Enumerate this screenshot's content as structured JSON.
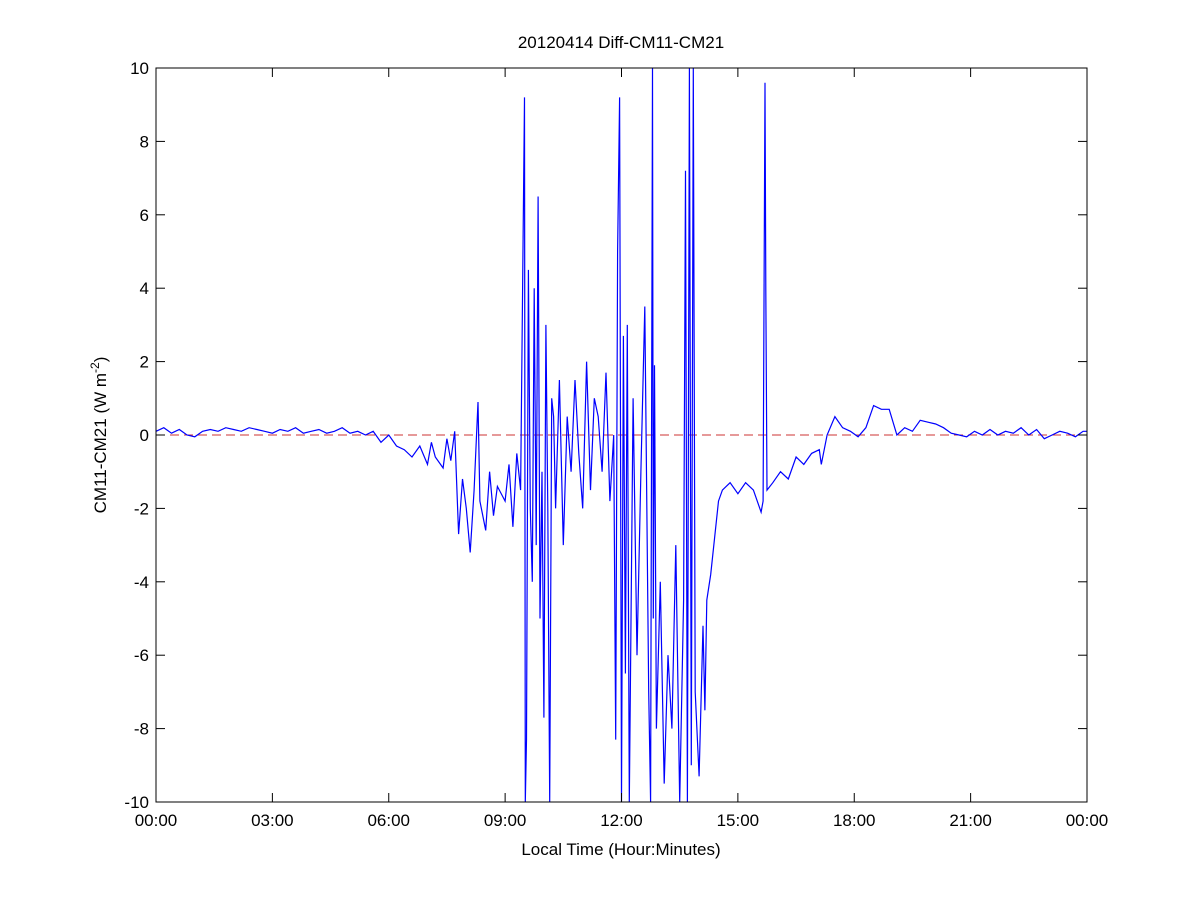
{
  "chart_data": {
    "type": "line",
    "title": "20120414 Diff-CM11-CM21",
    "xlabel": "Local Time (Hour:Minutes)",
    "ylabel": {
      "main": "CM11-CM21 (W m",
      "sup": "-2",
      "close": ")"
    },
    "xlim": [
      0,
      24
    ],
    "ylim": [
      -10,
      10
    ],
    "x_unit": "hours",
    "xticks": [
      0,
      3,
      6,
      9,
      12,
      15,
      18,
      21,
      24
    ],
    "xtick_labels": [
      "00:00",
      "03:00",
      "06:00",
      "09:00",
      "12:00",
      "15:00",
      "18:00",
      "21:00",
      "00:00"
    ],
    "yticks": [
      -10,
      -8,
      -6,
      -4,
      -2,
      0,
      2,
      4,
      6,
      8,
      10
    ],
    "ytick_labels": [
      "-10",
      "-8",
      "-6",
      "-4",
      "-2",
      "0",
      "2",
      "4",
      "6",
      "8",
      "10"
    ],
    "grid": false,
    "reference_line": {
      "y": 0,
      "style": "dashed",
      "color": "#cc3333"
    },
    "series": [
      {
        "name": "CM11-CM21",
        "color": "#0000ff",
        "x": [
          0,
          0.2,
          0.4,
          0.6,
          0.8,
          1.0,
          1.2,
          1.4,
          1.6,
          1.8,
          2.0,
          2.2,
          2.4,
          2.6,
          2.8,
          3.0,
          3.2,
          3.4,
          3.6,
          3.8,
          4.0,
          4.2,
          4.4,
          4.6,
          4.8,
          5.0,
          5.2,
          5.4,
          5.6,
          5.8,
          6.0,
          6.2,
          6.4,
          6.6,
          6.8,
          7.0,
          7.1,
          7.2,
          7.4,
          7.5,
          7.6,
          7.7,
          7.8,
          7.9,
          8.0,
          8.1,
          8.2,
          8.3,
          8.35,
          8.5,
          8.6,
          8.7,
          8.8,
          9.0,
          9.1,
          9.2,
          9.3,
          9.4,
          9.5,
          9.52,
          9.55,
          9.6,
          9.65,
          9.7,
          9.75,
          9.8,
          9.85,
          9.9,
          9.95,
          10.0,
          10.05,
          10.1,
          10.15,
          10.2,
          10.25,
          10.3,
          10.4,
          10.5,
          10.6,
          10.7,
          10.8,
          10.9,
          11.0,
          11.1,
          11.2,
          11.3,
          11.4,
          11.5,
          11.6,
          11.7,
          11.8,
          11.85,
          11.9,
          11.95,
          12.0,
          12.05,
          12.1,
          12.15,
          12.2,
          12.3,
          12.4,
          12.5,
          12.6,
          12.7,
          12.75,
          12.8,
          12.82,
          12.85,
          12.9,
          13.0,
          13.1,
          13.2,
          13.3,
          13.4,
          13.5,
          13.6,
          13.65,
          13.7,
          13.75,
          13.8,
          13.85,
          13.9,
          14.0,
          14.1,
          14.15,
          14.2,
          14.3,
          14.4,
          14.5,
          14.6,
          14.8,
          15.0,
          15.2,
          15.4,
          15.6,
          15.65,
          15.7,
          15.72,
          15.75,
          15.9,
          16.1,
          16.3,
          16.5,
          16.7,
          16.9,
          17.1,
          17.15,
          17.3,
          17.5,
          17.7,
          17.9,
          18.1,
          18.3,
          18.5,
          18.7,
          18.9,
          19.1,
          19.3,
          19.5,
          19.7,
          19.9,
          20.1,
          20.3,
          20.5,
          20.7,
          20.9,
          21.1,
          21.3,
          21.5,
          21.7,
          21.9,
          22.1,
          22.3,
          22.5,
          22.7,
          22.9,
          23.1,
          23.3,
          23.5,
          23.7,
          23.9,
          24
        ],
        "y": [
          0.1,
          0.2,
          0.05,
          0.15,
          0.0,
          -0.05,
          0.1,
          0.15,
          0.1,
          0.2,
          0.15,
          0.1,
          0.2,
          0.15,
          0.1,
          0.05,
          0.15,
          0.1,
          0.2,
          0.05,
          0.1,
          0.15,
          0.05,
          0.1,
          0.2,
          0.05,
          0.1,
          0.0,
          0.1,
          -0.2,
          0.0,
          -0.3,
          -0.4,
          -0.6,
          -0.3,
          -0.8,
          -0.2,
          -0.6,
          -0.9,
          -0.1,
          -0.7,
          0.1,
          -2.7,
          -1.2,
          -2.0,
          -3.2,
          -1.5,
          0.9,
          -1.8,
          -2.6,
          -1.0,
          -2.2,
          -1.4,
          -1.8,
          -0.8,
          -2.5,
          -0.5,
          -1.5,
          9.2,
          -10,
          -8.3,
          4.5,
          -2,
          -4,
          4,
          -3,
          6.5,
          -5,
          -1,
          -7.7,
          3,
          -2,
          -10,
          1,
          0.5,
          -2,
          1.5,
          -3,
          0.5,
          -1,
          1.5,
          -0.5,
          -2,
          2,
          -1.5,
          1,
          0.5,
          -1,
          1.7,
          -1.8,
          0,
          -8.3,
          5,
          9.2,
          -10,
          2.7,
          -6.5,
          3,
          -10,
          1,
          -6,
          -1,
          3.5,
          -7,
          -10,
          10,
          -5,
          1.9,
          -8,
          -4,
          -9.5,
          -6,
          -8,
          -3,
          -10,
          -4.5,
          7.2,
          -10,
          10,
          -9,
          10,
          -7,
          -9.3,
          -5.2,
          -7.5,
          -4.5,
          -3.8,
          -2.8,
          -1.8,
          -1.5,
          -1.3,
          -1.6,
          -1.3,
          -1.5,
          -2.1,
          -1.8,
          9.6,
          4,
          -1.5,
          -1.3,
          -1.0,
          -1.2,
          -0.6,
          -0.8,
          -0.5,
          -0.4,
          -0.8,
          0.0,
          0.5,
          0.2,
          0.1,
          -0.05,
          0.2,
          0.8,
          0.7,
          0.7,
          0.0,
          0.2,
          0.1,
          0.4,
          0.35,
          0.3,
          0.2,
          0.05,
          0.0,
          -0.05,
          0.1,
          0.0,
          0.15,
          0.0,
          0.1,
          0.05,
          0.2,
          0.0,
          0.15,
          -0.1,
          0.0,
          0.1,
          0.05,
          -0.05,
          0.1,
          0.1
        ]
      }
    ]
  }
}
